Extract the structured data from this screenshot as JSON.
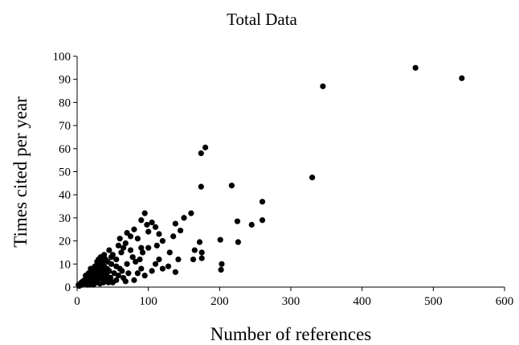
{
  "chart_data": {
    "type": "scatter",
    "title": "Total Data",
    "xlabel": "Number of references",
    "ylabel": "Times cited per year",
    "xlim": [
      0,
      600
    ],
    "ylim": [
      0,
      100
    ],
    "xticks": [
      "0",
      "100",
      "200",
      "300",
      "400",
      "500",
      "600"
    ],
    "yticks": [
      "0",
      "10",
      "20",
      "30",
      "40",
      "50",
      "60",
      "70",
      "80",
      "90",
      "100"
    ],
    "grid": false,
    "legend": "none",
    "marker_color": "#000000",
    "points": [
      [
        475,
        95
      ],
      [
        540,
        90.5
      ],
      [
        345,
        87
      ],
      [
        330,
        47.5
      ],
      [
        180,
        60.5
      ],
      [
        174,
        58
      ],
      [
        174,
        43.5
      ],
      [
        217,
        44
      ],
      [
        260,
        37
      ],
      [
        260,
        29
      ],
      [
        225,
        28.5
      ],
      [
        245,
        27
      ],
      [
        226,
        19.5
      ],
      [
        201,
        20.5
      ],
      [
        203,
        10
      ],
      [
        202,
        7.5
      ],
      [
        172,
        19.5
      ],
      [
        165,
        16
      ],
      [
        175,
        15
      ],
      [
        163,
        12
      ],
      [
        175,
        12.5
      ],
      [
        160,
        32
      ],
      [
        150,
        30
      ],
      [
        145,
        24.5
      ],
      [
        138,
        27.5
      ],
      [
        135,
        22
      ],
      [
        142,
        12
      ],
      [
        138,
        6.5
      ],
      [
        130,
        15
      ],
      [
        128,
        9
      ],
      [
        115,
        23
      ],
      [
        105,
        28
      ],
      [
        110,
        26
      ],
      [
        98,
        27
      ],
      [
        95,
        32
      ],
      [
        90,
        29
      ],
      [
        100,
        24
      ],
      [
        120,
        20
      ],
      [
        112,
        18
      ],
      [
        100,
        17
      ],
      [
        90,
        17
      ],
      [
        92,
        15
      ],
      [
        85,
        21
      ],
      [
        80,
        25
      ],
      [
        75,
        22
      ],
      [
        70,
        23.5
      ],
      [
        68,
        19
      ],
      [
        78,
        13
      ],
      [
        110,
        10
      ],
      [
        115,
        12
      ],
      [
        120,
        8
      ],
      [
        105,
        7
      ],
      [
        90,
        8
      ],
      [
        95,
        5
      ],
      [
        85,
        6
      ],
      [
        80,
        3
      ],
      [
        65,
        17
      ],
      [
        62,
        15
      ],
      [
        58,
        18
      ],
      [
        55,
        12
      ],
      [
        50,
        14
      ],
      [
        48,
        10
      ],
      [
        45,
        16
      ],
      [
        42,
        8
      ],
      [
        40,
        12
      ],
      [
        38,
        14
      ],
      [
        36,
        6
      ],
      [
        35,
        10
      ],
      [
        33,
        8
      ],
      [
        32,
        4
      ],
      [
        30,
        9
      ],
      [
        30,
        12
      ],
      [
        28,
        11
      ],
      [
        26,
        6
      ],
      [
        25,
        9
      ],
      [
        24,
        3
      ],
      [
        22,
        7
      ],
      [
        20,
        5
      ],
      [
        19,
        8
      ],
      [
        18,
        2
      ],
      [
        16,
        6
      ],
      [
        15,
        4
      ],
      [
        14,
        3
      ],
      [
        12,
        5
      ],
      [
        11,
        2
      ],
      [
        10,
        3
      ],
      [
        9,
        1.5
      ],
      [
        8,
        2.5
      ],
      [
        7,
        1
      ],
      [
        6,
        2
      ],
      [
        5,
        1.5
      ],
      [
        4,
        1
      ],
      [
        3,
        0.5
      ],
      [
        2,
        1
      ],
      [
        60,
        8
      ],
      [
        58,
        5
      ],
      [
        55,
        3
      ],
      [
        52,
        6
      ],
      [
        50,
        2
      ],
      [
        47,
        4
      ],
      [
        45,
        7
      ],
      [
        44,
        2
      ],
      [
        42,
        5
      ],
      [
        40,
        3
      ],
      [
        38,
        9
      ],
      [
        37,
        2
      ],
      [
        35,
        4
      ],
      [
        34,
        6
      ],
      [
        32,
        1.5
      ],
      [
        31,
        7
      ],
      [
        29,
        3
      ],
      [
        28,
        5
      ],
      [
        27,
        2
      ],
      [
        26,
        4
      ],
      [
        24,
        6
      ],
      [
        23,
        1
      ],
      [
        22,
        4
      ],
      [
        21,
        2
      ],
      [
        20,
        3
      ],
      [
        18,
        4
      ],
      [
        17,
        1
      ],
      [
        16,
        3
      ],
      [
        14,
        1
      ],
      [
        13,
        2
      ],
      [
        70,
        10
      ],
      [
        72,
        6
      ],
      [
        65,
        4
      ],
      [
        63,
        7
      ],
      [
        68,
        2.5
      ],
      [
        75,
        16
      ],
      [
        82,
        11
      ],
      [
        88,
        12
      ],
      [
        60,
        21
      ],
      [
        55,
        9
      ],
      [
        48,
        13
      ],
      [
        43,
        11
      ],
      [
        40,
        7
      ],
      [
        36,
        11
      ],
      [
        33,
        13
      ],
      [
        30,
        6
      ],
      [
        27,
        8
      ],
      [
        25,
        7
      ],
      [
        23,
        5
      ],
      [
        21,
        6
      ]
    ]
  }
}
